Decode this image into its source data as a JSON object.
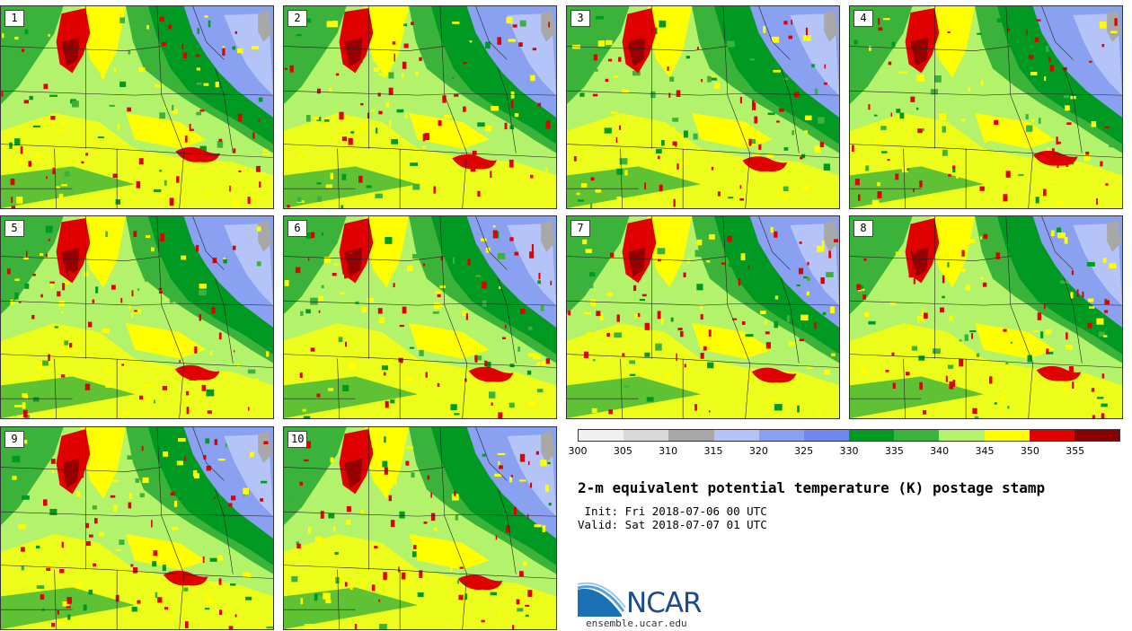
{
  "members": [
    {
      "label": "1"
    },
    {
      "label": "2"
    },
    {
      "label": "3"
    },
    {
      "label": "4"
    },
    {
      "label": "5"
    },
    {
      "label": "6"
    },
    {
      "label": "7"
    },
    {
      "label": "8"
    },
    {
      "label": "9"
    },
    {
      "label": "10"
    }
  ],
  "legend": {
    "ticks": [
      "300",
      "305",
      "310",
      "315",
      "320",
      "325",
      "330",
      "335",
      "340",
      "345",
      "350",
      "355"
    ],
    "colors": [
      "#f0f0f0",
      "#d9d9d9",
      "#a8a8a8",
      "#b4c4f8",
      "#8aa0f0",
      "#6f88ec",
      "#009a22",
      "#3bb33b",
      "#b3f26b",
      "#ffff00",
      "#e00000",
      "#8a0000"
    ]
  },
  "title": "2-m equivalent potential temperature (K) postage stamp",
  "init": " Init: Fri 2018-07-06 00 UTC",
  "valid": "Valid: Sat 2018-07-07 01 UTC",
  "logo": {
    "text": "NCAR",
    "url": "ensemble.ucar.edu"
  },
  "map_colors": {
    "base": "#b3f26b",
    "light_green": "#3bb33b",
    "dark_green": "#009a22",
    "blue": "#8aa0f0",
    "light_blue": "#b4c4f8",
    "yellow": "#ffff00",
    "red": "#e00000",
    "dark_red": "#8a0000",
    "gray": "#a8a8a8",
    "border": "#222222"
  }
}
